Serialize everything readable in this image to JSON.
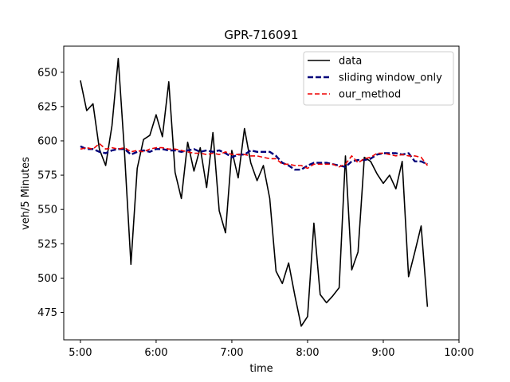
{
  "chart_data": {
    "type": "line",
    "title": "GPR-716091",
    "xlabel": "time",
    "ylabel": "veh/5 Minutes",
    "x_tick_labels": [
      "5:00",
      "6:00",
      "7:00",
      "8:00",
      "9:00",
      "10:00"
    ],
    "x_tick_values": [
      5,
      6,
      7,
      8,
      9,
      10
    ],
    "xlim": [
      4.78,
      10.0
    ],
    "y_ticks": [
      475,
      500,
      525,
      550,
      575,
      600,
      625,
      650
    ],
    "ylim": [
      455,
      669
    ],
    "legend_position": "top-right",
    "x": [
      5.0,
      5.0833,
      5.1667,
      5.25,
      5.3333,
      5.4167,
      5.5,
      5.5833,
      5.6667,
      5.75,
      5.8333,
      5.9167,
      6.0,
      6.0833,
      6.1667,
      6.25,
      6.3333,
      6.4167,
      6.5,
      6.5833,
      6.6667,
      6.75,
      6.8333,
      6.9167,
      7.0,
      7.0833,
      7.1667,
      7.25,
      7.3333,
      7.4167,
      7.5,
      7.5833,
      7.6667,
      7.75,
      7.8333,
      7.9167,
      8.0,
      8.0833,
      8.1667,
      8.25,
      8.3333,
      8.4167,
      8.5,
      8.5833,
      8.6667,
      8.75,
      8.8333,
      8.9167,
      9.0,
      9.0833,
      9.1667,
      9.25,
      9.3333,
      9.4167,
      9.5,
      9.5833
    ],
    "series": [
      {
        "name": "data",
        "color": "#000000",
        "dash": "solid",
        "values": [
          644,
          622,
          627,
          594,
          582,
          611,
          660,
          591,
          510,
          580,
          601,
          604,
          619,
          603,
          643,
          577,
          558,
          599,
          578,
          595,
          566,
          606,
          549,
          533,
          593,
          573,
          609,
          584,
          571,
          582,
          558,
          505,
          496,
          511,
          487,
          465,
          472,
          540,
          488,
          482,
          487,
          493,
          589,
          506,
          519,
          588,
          585,
          576,
          569,
          575,
          565,
          585,
          501,
          519,
          538,
          479
        ]
      },
      {
        "name": "sliding window_only",
        "color": "#00007a",
        "dash": "thick",
        "values": [
          596,
          594,
          594,
          592,
          591,
          593,
          594,
          594,
          590,
          592,
          593,
          592,
          594,
          594,
          593,
          593,
          592,
          593,
          594,
          592,
          593,
          592,
          593,
          591,
          588,
          590,
          590,
          593,
          592,
          592,
          592,
          589,
          584,
          582,
          579,
          579,
          582,
          584,
          584,
          584,
          583,
          582,
          581,
          585,
          586,
          586,
          587,
          590,
          591,
          591,
          591,
          590,
          591,
          585,
          585,
          583
        ]
      },
      {
        "name": "our_method",
        "color": "#ee0000",
        "dash": "thin",
        "values": [
          594,
          595,
          594,
          598,
          594,
          595,
          594,
          595,
          592,
          593,
          592,
          594,
          595,
          595,
          594,
          594,
          593,
          592,
          591,
          591,
          590,
          591,
          590,
          592,
          590,
          590,
          590,
          589,
          589,
          588,
          587,
          587,
          583,
          583,
          582,
          582,
          580,
          583,
          583,
          583,
          583,
          581,
          583,
          589,
          584,
          587,
          588,
          591,
          591,
          590,
          589,
          590,
          589,
          589,
          588,
          582
        ]
      }
    ]
  }
}
